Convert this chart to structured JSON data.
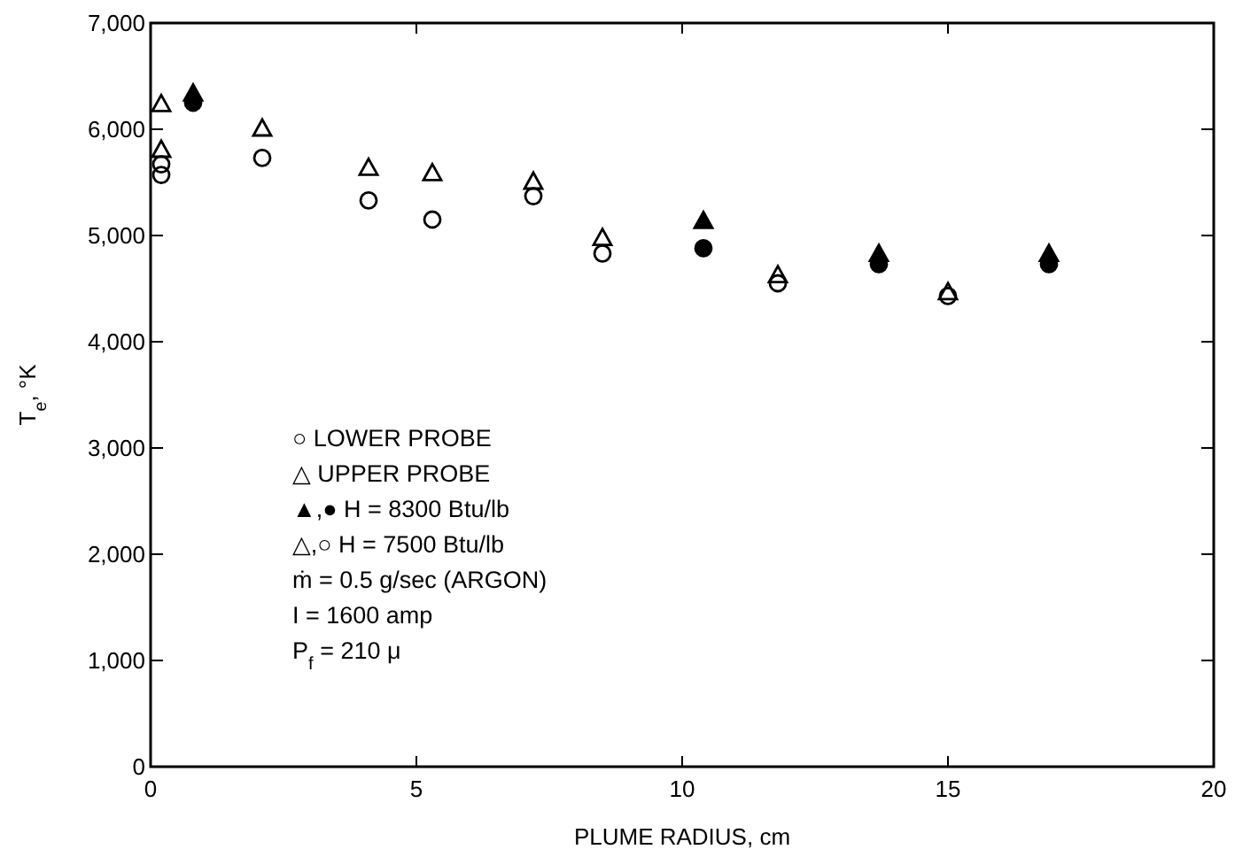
{
  "chart_data": {
    "type": "scatter",
    "xlabel": "PLUME RADIUS, cm",
    "ylabel": "T$_{e}$, °K",
    "xlim": [
      0,
      20
    ],
    "xticks": [
      0,
      5,
      10,
      15,
      20
    ],
    "ylim": [
      0,
      7000
    ],
    "yticks": [
      0,
      {
        "value": 1000,
        "label": "1,000"
      },
      {
        "value": 2000,
        "label": "2,000"
      },
      {
        "value": 3000,
        "label": "3,000"
      },
      {
        "value": 4000,
        "label": "4,000"
      },
      {
        "value": 5000,
        "label": "5,000"
      },
      {
        "value": 6000,
        "label": "6,000"
      },
      {
        "value": 7000,
        "label": "7,000"
      }
    ],
    "grid": false,
    "series": [
      {
        "color": "#ffffff",
        "marker": "circle",
        "x": [
          0.2,
          0.2,
          2.1,
          4.1,
          5.3,
          7.2,
          8.5,
          11.8,
          15
        ],
        "values": [
          5670,
          5570,
          5730,
          5330,
          5150,
          5370,
          4830,
          4550,
          4430
        ]
      },
      {
        "color": "#ffffff",
        "marker": "triangle",
        "x": [
          0.2,
          0.2,
          2.1,
          4.1,
          5.3,
          7.2,
          8.5,
          11.8,
          15
        ],
        "values": [
          6230,
          5800,
          6000,
          5630,
          5580,
          5500,
          4970,
          4620,
          4460
        ]
      },
      {
        "color": "#000000",
        "marker": "circle",
        "x": [
          0.8,
          10.4,
          13.7,
          16.9
        ],
        "values": [
          6250,
          4880,
          4730,
          4730
        ]
      },
      {
        "color": "#000000",
        "marker": "triangle",
        "x": [
          0.8,
          10.4,
          13.7,
          16.9
        ],
        "values": [
          6330,
          5130,
          4820,
          4820
        ]
      }
    ],
    "annotations": [
      "○ LOWER PROBE",
      "△ UPPER PROBE",
      "▲,● H = 8300 Btu/lb",
      "△,○ H = 7500 Btu/lb",
      "ṁ = 0.5 g/sec (ARGON)",
      "I = 1600 amp",
      "P$_{f}$ = 210 μ"
    ]
  }
}
